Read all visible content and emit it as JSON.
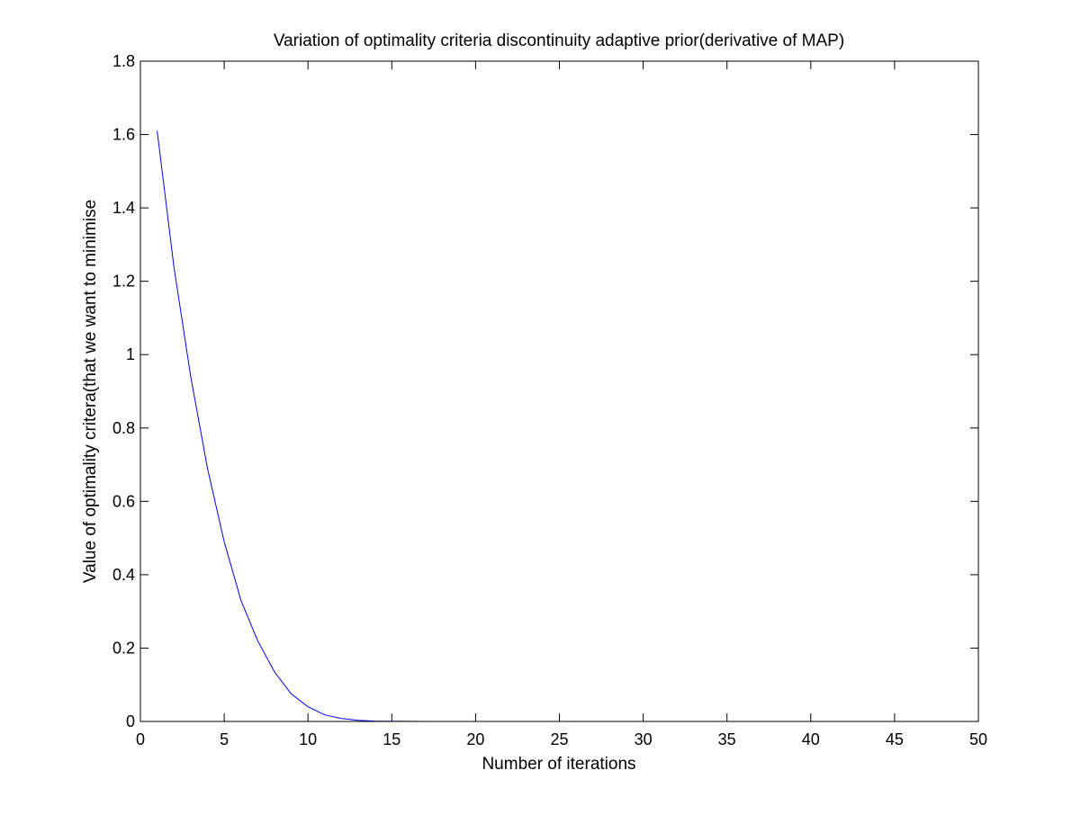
{
  "chart_data": {
    "type": "line",
    "title": "Variation of optimality criteria discontinuity adaptive prior(derivative of MAP)",
    "xlabel": "Number of iterations",
    "ylabel": "Value of optimality critera(that we want to minimise",
    "xlim": [
      0,
      50
    ],
    "ylim": [
      0,
      1.8
    ],
    "xticks": [
      0,
      5,
      10,
      15,
      20,
      25,
      30,
      35,
      40,
      45,
      50
    ],
    "yticks": [
      0,
      0.2,
      0.4,
      0.6,
      0.8,
      1,
      1.2,
      1.4,
      1.6,
      1.8
    ],
    "xtick_labels": [
      "0",
      "5",
      "10",
      "15",
      "20",
      "25",
      "30",
      "35",
      "40",
      "45",
      "50"
    ],
    "ytick_labels": [
      "0",
      "0.2",
      "0.4",
      "0.6",
      "0.8",
      "1",
      "1.2",
      "1.4",
      "1.6",
      "1.8"
    ],
    "grid": false,
    "line_color": "#0000ff",
    "series": [
      {
        "x": [
          1,
          2,
          3,
          4,
          5,
          6,
          7,
          8,
          9,
          10,
          11,
          12,
          13,
          14,
          15,
          16,
          17,
          18,
          19,
          20,
          21,
          22,
          23,
          24,
          25,
          26,
          27,
          28,
          29,
          30,
          31,
          32,
          33,
          34,
          35,
          36,
          37,
          38,
          39,
          40,
          41,
          42,
          43,
          44,
          45,
          46
        ],
        "y": [
          1.61,
          1.24,
          0.94,
          0.69,
          0.49,
          0.33,
          0.22,
          0.135,
          0.075,
          0.04,
          0.018,
          0.008,
          0.003,
          0.001,
          0.0004,
          0.0002,
          0.0001,
          0,
          0,
          0,
          0,
          0,
          0,
          0,
          0,
          0,
          0,
          0,
          0,
          0,
          0,
          0,
          0,
          0,
          0,
          0,
          0,
          0,
          0,
          0,
          0,
          0,
          0,
          0,
          0,
          0
        ]
      }
    ]
  }
}
